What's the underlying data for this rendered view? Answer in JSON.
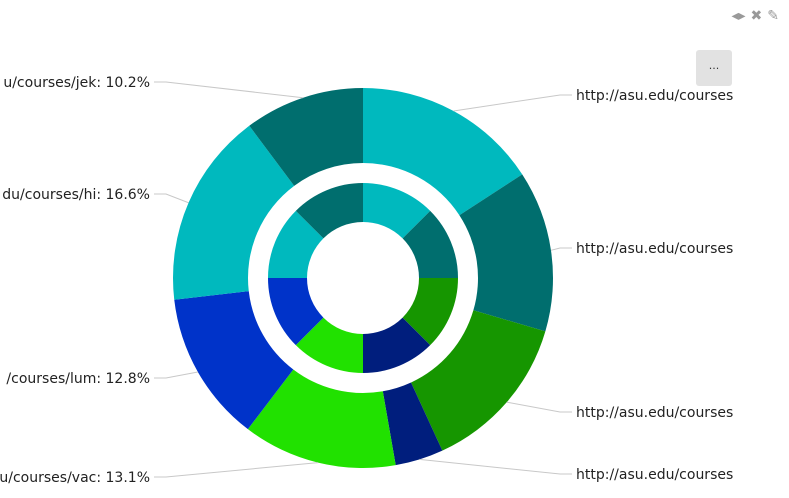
{
  "toolbar": {
    "resize_icon": "◂▸",
    "close_icon": "✖",
    "edit_icon": "✎",
    "menu_label": "···"
  },
  "colors": {
    "light_teal": "#00b9be",
    "dark_teal": "#006e6e",
    "green": "#169600",
    "navy": "#001e7d",
    "bright_green": "#21e100",
    "blue": "#0033c9"
  },
  "chart_data": {
    "type": "sunburst",
    "outer": [
      {
        "label": "http://asu.edu/courses",
        "value": 15.8,
        "color": "#00b9be"
      },
      {
        "label": "http://asu.edu/courses",
        "value": 13.7,
        "color": "#006e6e"
      },
      {
        "label": "http://asu.edu/courses",
        "value": 13.6,
        "color": "#169600"
      },
      {
        "label": "http://asu.edu/courses",
        "value": 4.1,
        "color": "#001e7d"
      },
      {
        "label": "u/courses/vac: 13.1%",
        "value": 13.1,
        "color": "#21e100"
      },
      {
        "label": "/courses/lum: 12.8%",
        "value": 12.8,
        "color": "#0033c9"
      },
      {
        "label": "du/courses/hi: 16.6%",
        "value": 16.6,
        "color": "#00b9be"
      },
      {
        "label": "u/courses/jek: 10.2%",
        "value": 10.2,
        "color": "#006e6e"
      }
    ],
    "inner": [
      {
        "value": 1,
        "color": "#00b9be"
      },
      {
        "value": 1,
        "color": "#006e6e"
      },
      {
        "value": 1,
        "color": "#169600"
      },
      {
        "value": 1,
        "color": "#001e7d"
      },
      {
        "value": 1,
        "color": "#21e100"
      },
      {
        "value": 1,
        "color": "#0033c9"
      },
      {
        "value": 1,
        "color": "#00b9be"
      },
      {
        "value": 1,
        "color": "#006e6e"
      }
    ]
  }
}
